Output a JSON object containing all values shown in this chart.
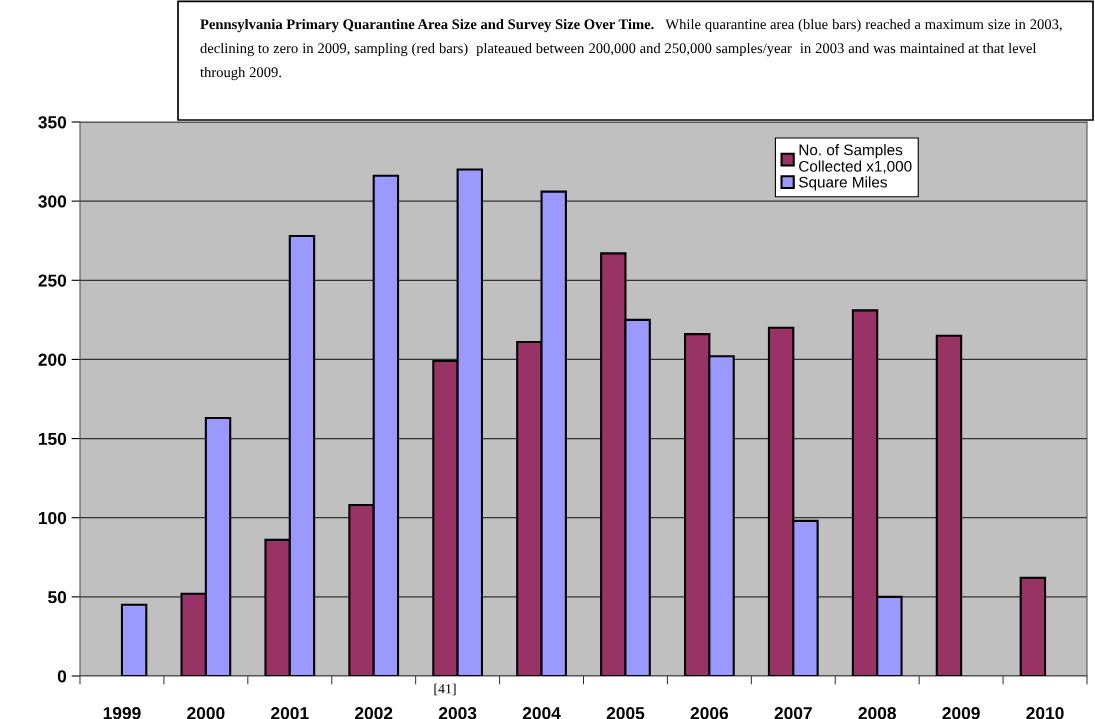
{
  "chart_data": {
    "type": "bar",
    "title": "Pennsylvania Primary Quarantine Area Size and Survey Size Over Time.",
    "subtitle": "While quarantine area (blue bars) reached a maximum size in 2003, declining to zero in 2009, sampling (red bars)  plateaued between 200,000 and 250,000 samples/year  in 2003 and was maintained at that level through 2009.",
    "categories": [
      "1999",
      "2000",
      "2001",
      "2002",
      "2003",
      "2004",
      "2005",
      "2006",
      "2007",
      "2008",
      "2009",
      "2010"
    ],
    "series": [
      {
        "name": "No. of Samples\nCollected x1,000",
        "color": "#993366",
        "values": [
          null,
          52,
          86,
          108,
          199,
          211,
          267,
          216,
          220,
          231,
          215,
          62
        ]
      },
      {
        "name": "Square Miles",
        "color": "#9999ff",
        "values": [
          45,
          163,
          278,
          316,
          320,
          306,
          225,
          202,
          98,
          50,
          null,
          null
        ]
      }
    ],
    "ylim": [
      0,
      350
    ],
    "yticks": [
      0,
      50,
      100,
      150,
      200,
      250,
      300,
      350
    ],
    "grid": "y",
    "legend": "top right",
    "annotations": [
      "[41]"
    ]
  }
}
